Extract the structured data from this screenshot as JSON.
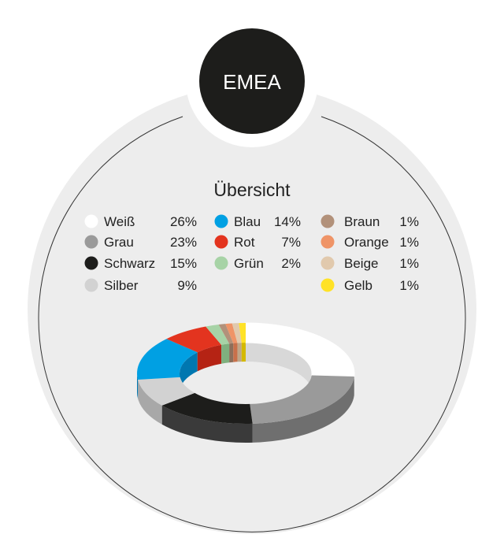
{
  "region": "EMEA",
  "colors": {
    "background_circle": "#ededed",
    "badge": "#1d1d1b",
    "badge_text": "#ffffff"
  },
  "chart_data": {
    "type": "pie",
    "style": "3d-donut",
    "title": "Übersicht",
    "unit": "%",
    "legend_placement": "above chart, three columns",
    "series": [
      {
        "name": "Weiß",
        "value": 26,
        "label": "26%",
        "color": "#ffffff",
        "side": "#d8d8d8"
      },
      {
        "name": "Grau",
        "value": 23,
        "label": "23%",
        "color": "#9a9a9a",
        "side": "#6f6f6f"
      },
      {
        "name": "Schwarz",
        "value": 15,
        "label": "15%",
        "color": "#1d1d1b",
        "side": "#3a3a3a"
      },
      {
        "name": "Silber",
        "value": 9,
        "label": "9%",
        "color": "#d2d2d2",
        "side": "#a8a8a8"
      },
      {
        "name": "Blau",
        "value": 14,
        "label": "14%",
        "color": "#00a0e3",
        "side": "#0077b0"
      },
      {
        "name": "Rot",
        "value": 7,
        "label": "7%",
        "color": "#e3341f",
        "side": "#b52314"
      },
      {
        "name": "Grün",
        "value": 2,
        "label": "2%",
        "color": "#a7d3a6",
        "side": "#7fb07e"
      },
      {
        "name": "Braun",
        "value": 1,
        "label": "1%",
        "color": "#b2917a",
        "side": "#8c6f5b"
      },
      {
        "name": "Orange",
        "value": 1,
        "label": "1%",
        "color": "#ef9467",
        "side": "#c8704a"
      },
      {
        "name": "Beige",
        "value": 1,
        "label": "1%",
        "color": "#e1c9ad",
        "side": "#bea689"
      },
      {
        "name": "Gelb",
        "value": 1,
        "label": "1%",
        "color": "#ffe227",
        "side": "#d4b900"
      }
    ]
  }
}
